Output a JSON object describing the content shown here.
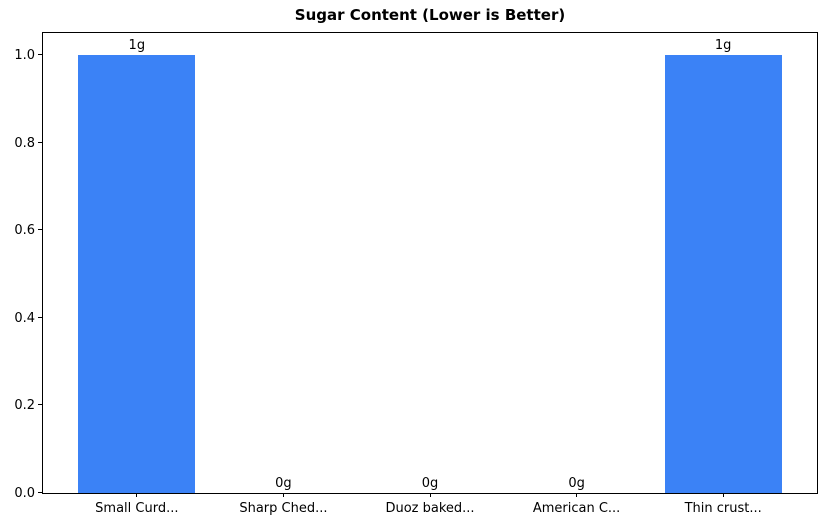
{
  "chart_data": {
    "type": "bar",
    "title": "Sugar Content (Lower is Better)",
    "categories": [
      "Small Curd...",
      "Sharp Ched...",
      "Duoz baked...",
      "American C...",
      "Thin crust..."
    ],
    "values": [
      1,
      0,
      0,
      0,
      1
    ],
    "value_labels": [
      "1g",
      "0g",
      "0g",
      "0g",
      "1g"
    ],
    "xlabel": "",
    "ylabel": "",
    "ytick_labels": [
      "0.0",
      "0.2",
      "0.4",
      "0.6",
      "0.8",
      "1.0"
    ],
    "ytick_values": [
      0.0,
      0.2,
      0.4,
      0.6,
      0.8,
      1.0
    ],
    "ylim": [
      0,
      1.05
    ],
    "bar_color": "#3b82f6",
    "background_color": "#ffffff",
    "spine_color": "#000000",
    "grid": false,
    "legend": null
  }
}
